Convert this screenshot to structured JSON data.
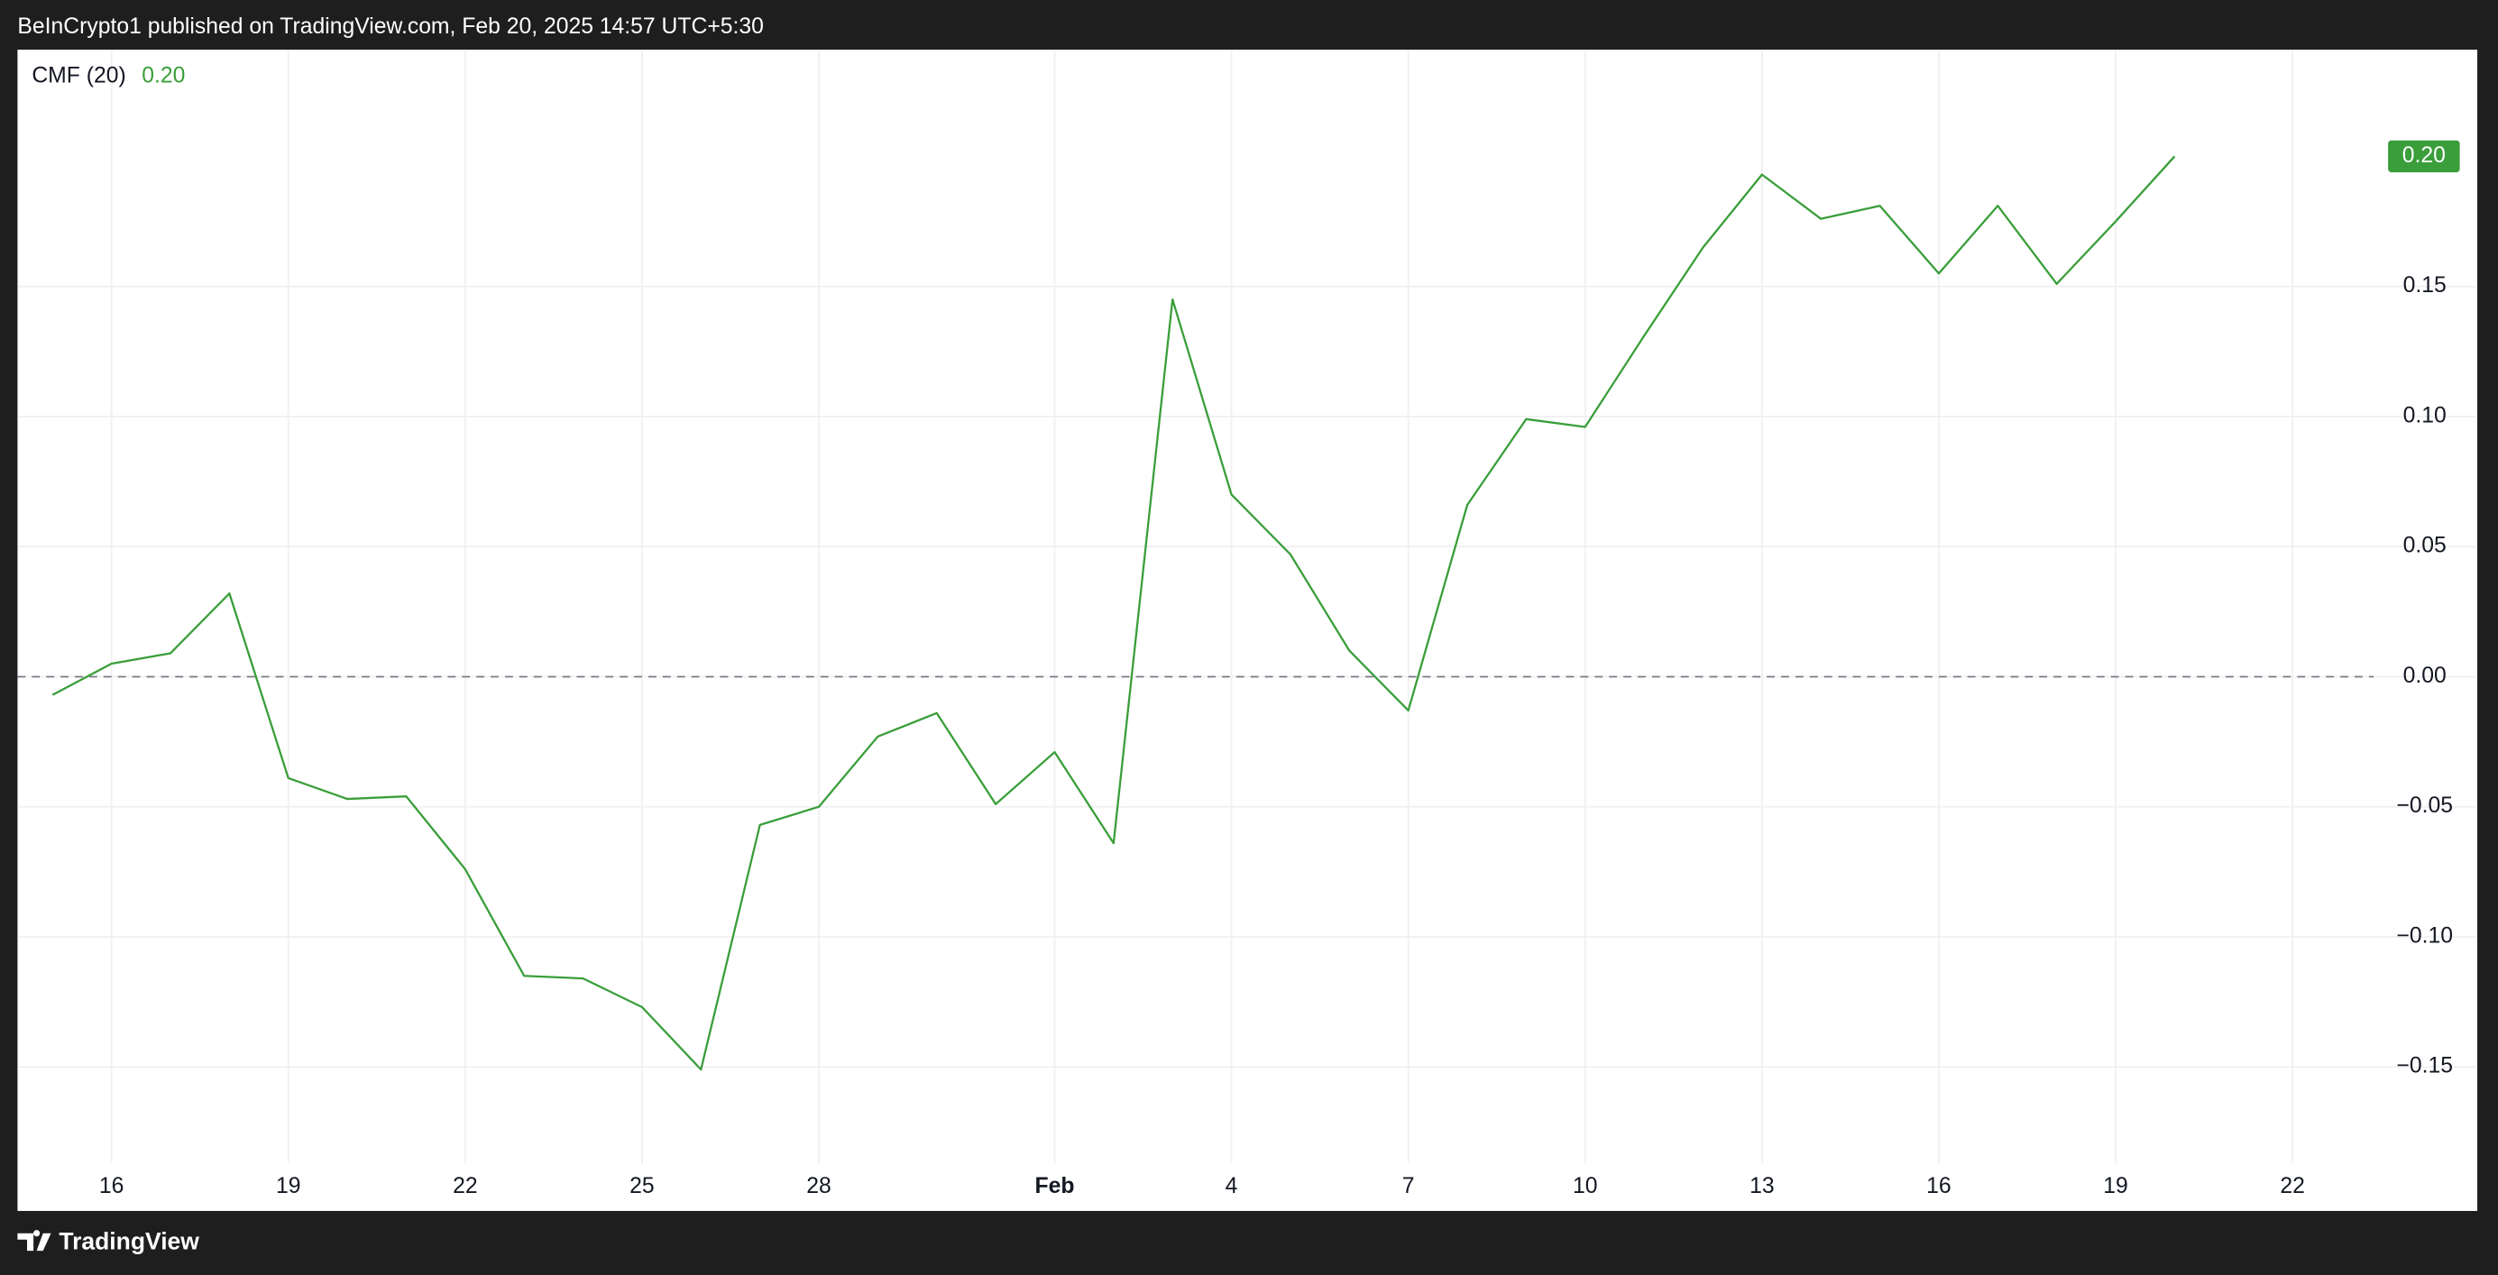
{
  "header": {
    "text": "BeInCrypto1 published on TradingView.com, Feb 20, 2025 14:57 UTC+5:30"
  },
  "footer": {
    "brand": "TradingView"
  },
  "chart_data": {
    "type": "line",
    "categories": [
      null,
      "16",
      null,
      null,
      "19",
      null,
      null,
      "22",
      null,
      null,
      "25",
      null,
      null,
      "28",
      null,
      null,
      null,
      "Feb",
      null,
      null,
      "4",
      null,
      null,
      "7",
      null,
      null,
      "10",
      null,
      null,
      "13",
      null,
      null,
      "16",
      null,
      null,
      "19",
      null,
      null,
      "22"
    ],
    "series": [
      {
        "name": "CMF (20)",
        "color": "#3a9e3a",
        "last_value_label": "0.20",
        "values": [
          -0.007,
          0.005,
          0.009,
          0.032,
          -0.039,
          -0.047,
          -0.046,
          -0.074,
          -0.115,
          -0.116,
          -0.127,
          -0.151,
          -0.057,
          -0.05,
          -0.023,
          -0.014,
          -0.049,
          -0.029,
          -0.064,
          0.145,
          0.07,
          0.047,
          0.01,
          -0.013,
          0.066,
          0.099,
          0.096,
          0.131,
          0.165,
          0.193,
          0.176,
          0.181,
          0.155,
          0.181,
          0.151,
          0.175,
          0.2,
          null,
          null
        ]
      }
    ],
    "ylim": [
      -0.187,
      0.241
    ],
    "yticks": [
      {
        "value": -0.15,
        "label": "−0.15"
      },
      {
        "value": -0.1,
        "label": "−0.10"
      },
      {
        "value": -0.05,
        "label": "−0.05"
      },
      {
        "value": 0,
        "label": "0.00"
      },
      {
        "value": 0.05,
        "label": "0.05"
      },
      {
        "value": 0.1,
        "label": "0.10"
      },
      0.15
    ],
    "grid": true,
    "zero_line": true,
    "legend": "top-left"
  }
}
